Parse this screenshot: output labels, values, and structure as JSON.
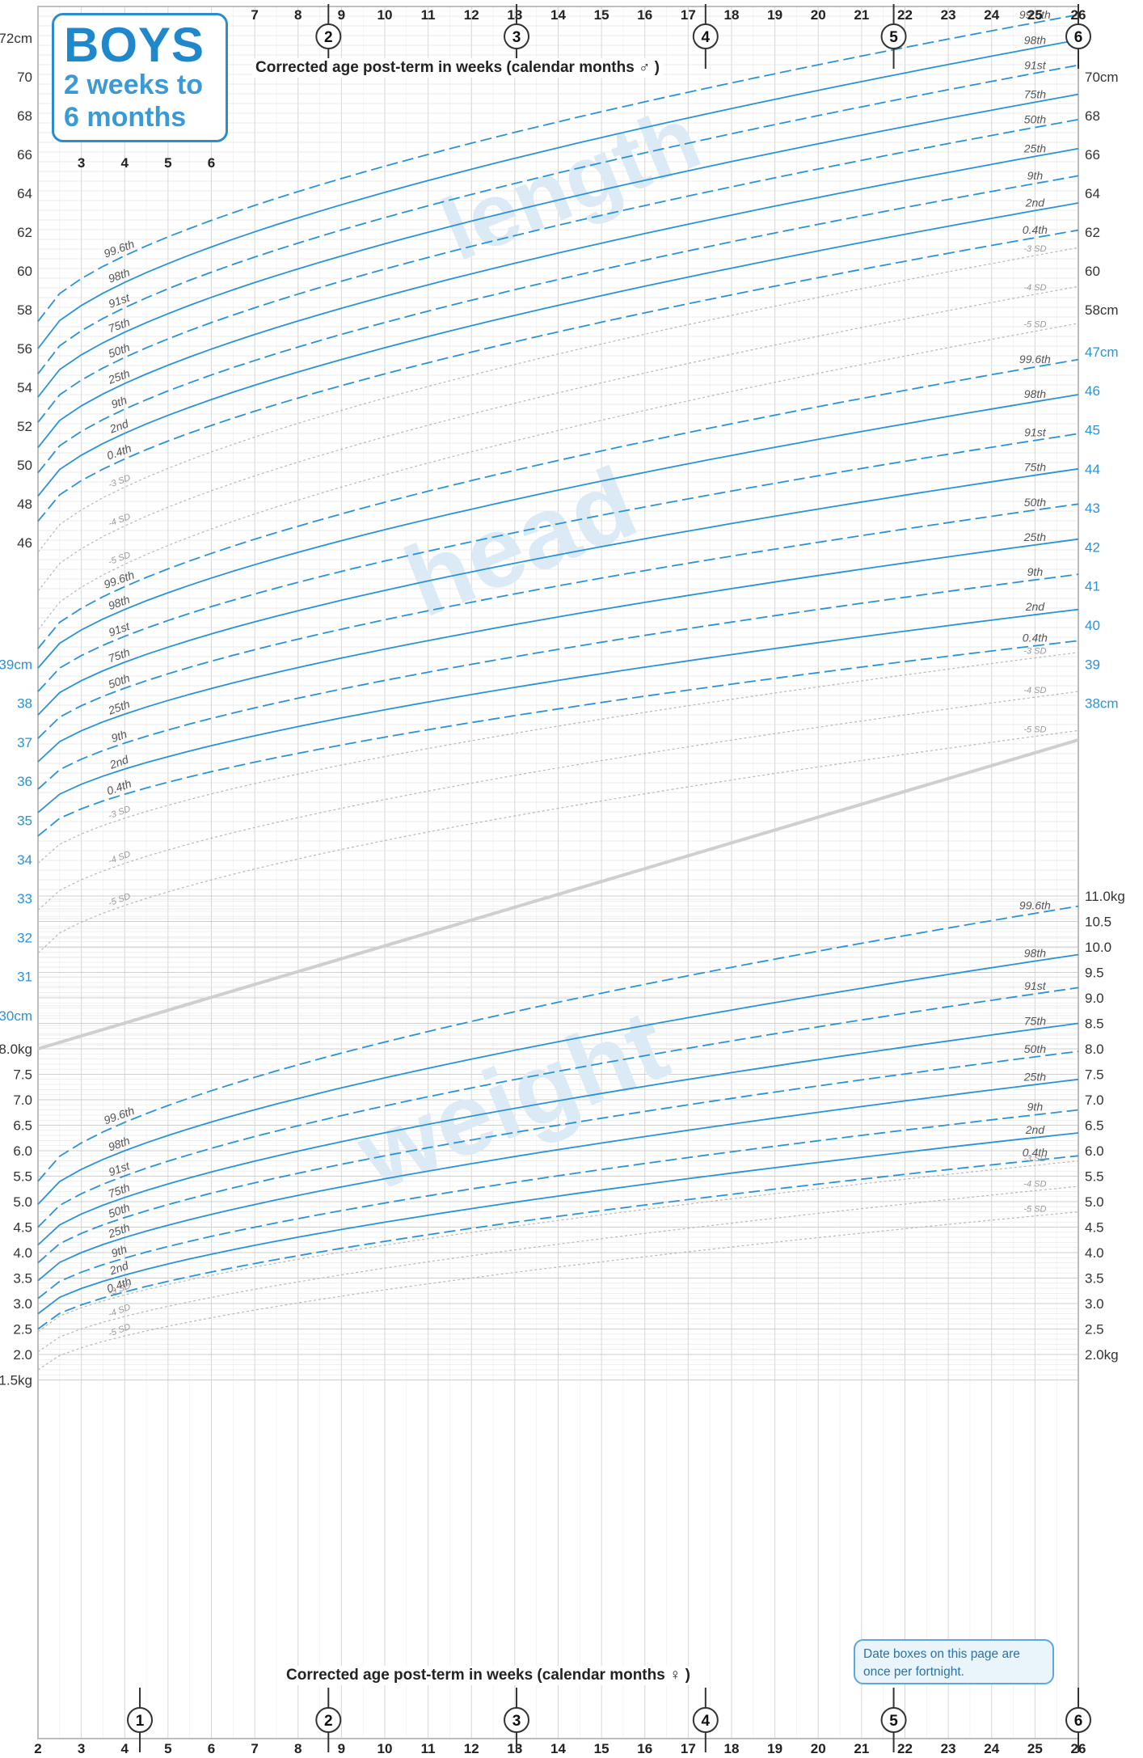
{
  "header": {
    "title": "BOYS",
    "subtitle": "2 weeks to 6 months"
  },
  "captions": {
    "top": "Corrected age post-term in weeks (calendar months ♂ )",
    "bottom": "Corrected age post-term in weeks (calendar months ♀ )"
  },
  "note": "Date boxes on this page are once per fortnight.",
  "colors": {
    "centile_line": "#2a93d5",
    "sd_line": "#b8b8b8",
    "watermark": "#dbeaf5",
    "grid": "#d6d6d6",
    "blue_label": "#2a93d5"
  },
  "chart_data": [
    {
      "type": "line",
      "title": "length",
      "xlabel": "Corrected age post-term in weeks",
      "ylabel": "",
      "unit_label": "cm",
      "x_range": [
        2,
        26
      ],
      "ylim": [
        46,
        72
      ],
      "yticks": [
        46,
        48,
        50,
        52,
        54,
        56,
        58,
        60,
        62,
        64,
        66,
        68,
        70,
        72
      ],
      "y_tick_labels_left": [
        "46",
        "48",
        "50",
        "52",
        "54",
        "56",
        "58",
        "60",
        "62",
        "64",
        "66",
        "68",
        "70",
        "72cm"
      ],
      "y_tick_labels_right": [
        "58cm",
        "60",
        "62",
        "64",
        "66",
        "68",
        "70cm"
      ],
      "month_markers": [
        "2",
        "3",
        "4",
        "5",
        "6"
      ],
      "series": [
        {
          "name": "99.6th",
          "x": [
            2,
            26
          ],
          "y": [
            57.4,
            73.2
          ],
          "dashed": true
        },
        {
          "name": "98th",
          "x": [
            2,
            26
          ],
          "y": [
            56.0,
            71.9
          ],
          "dashed": false
        },
        {
          "name": "91st",
          "x": [
            2,
            26
          ],
          "y": [
            54.7,
            70.6
          ],
          "dashed": true
        },
        {
          "name": "75th",
          "x": [
            2,
            26
          ],
          "y": [
            53.5,
            69.1
          ],
          "dashed": false
        },
        {
          "name": "50th",
          "x": [
            2,
            26
          ],
          "y": [
            52.2,
            67.8
          ],
          "dashed": true
        },
        {
          "name": "25th",
          "x": [
            2,
            26
          ],
          "y": [
            50.9,
            66.3
          ],
          "dashed": false
        },
        {
          "name": "9th",
          "x": [
            2,
            26
          ],
          "y": [
            49.6,
            64.9
          ],
          "dashed": true
        },
        {
          "name": "2nd",
          "x": [
            2,
            26
          ],
          "y": [
            48.4,
            63.5
          ],
          "dashed": false
        },
        {
          "name": "0.4th",
          "x": [
            2,
            26
          ],
          "y": [
            47.1,
            62.1
          ],
          "dashed": true
        },
        {
          "name": "-3 SD",
          "x": [
            2,
            26
          ],
          "y": [
            45.5,
            61.2
          ],
          "sd": true
        },
        {
          "name": "-4 SD",
          "x": [
            2,
            26
          ],
          "y": [
            43.5,
            59.2
          ],
          "sd": true
        },
        {
          "name": "-5 SD",
          "x": [
            2,
            26
          ],
          "y": [
            41.5,
            57.3
          ],
          "sd": true
        }
      ]
    },
    {
      "type": "line",
      "title": "head",
      "xlabel": "Corrected age post-term in weeks",
      "ylabel": "",
      "unit_label": "cm",
      "x_range": [
        2,
        26
      ],
      "ylim": [
        30,
        47
      ],
      "yticks": [
        30,
        31,
        32,
        33,
        34,
        35,
        36,
        37,
        38,
        39
      ],
      "y_tick_labels_left": [
        "30cm",
        "31",
        "32",
        "33",
        "34",
        "35",
        "36",
        "37",
        "38",
        "39cm"
      ],
      "y_tick_labels_right": [
        "38cm",
        "39",
        "40",
        "41",
        "42",
        "43",
        "44",
        "45",
        "46",
        "47cm"
      ],
      "series": [
        {
          "name": "99.6th",
          "x": [
            2,
            26
          ],
          "y": [
            39.4,
            46.8
          ],
          "dashed": true
        },
        {
          "name": "98th",
          "x": [
            2,
            26
          ],
          "y": [
            38.9,
            45.9
          ],
          "dashed": false
        },
        {
          "name": "91st",
          "x": [
            2,
            26
          ],
          "y": [
            38.3,
            44.9
          ],
          "dashed": true
        },
        {
          "name": "75th",
          "x": [
            2,
            26
          ],
          "y": [
            37.7,
            44.0
          ],
          "dashed": false
        },
        {
          "name": "50th",
          "x": [
            2,
            26
          ],
          "y": [
            37.1,
            43.1
          ],
          "dashed": true
        },
        {
          "name": "25th",
          "x": [
            2,
            26
          ],
          "y": [
            36.5,
            42.2
          ],
          "dashed": false
        },
        {
          "name": "9th",
          "x": [
            2,
            26
          ],
          "y": [
            35.8,
            41.3
          ],
          "dashed": true
        },
        {
          "name": "2nd",
          "x": [
            2,
            26
          ],
          "y": [
            35.2,
            40.4
          ],
          "dashed": false
        },
        {
          "name": "0.4th",
          "x": [
            2,
            26
          ],
          "y": [
            34.6,
            39.6
          ],
          "dashed": true
        },
        {
          "name": "-3 SD",
          "x": [
            2,
            26
          ],
          "y": [
            33.9,
            39.3
          ],
          "sd": true
        },
        {
          "name": "-4 SD",
          "x": [
            2,
            26
          ],
          "y": [
            32.7,
            38.3
          ],
          "sd": true
        },
        {
          "name": "-5 SD",
          "x": [
            2,
            26
          ],
          "y": [
            31.6,
            37.3
          ],
          "sd": true
        }
      ]
    },
    {
      "type": "line",
      "title": "weight",
      "xlabel": "Corrected age post-term in weeks",
      "ylabel": "",
      "unit_label": "kg",
      "x_range": [
        2,
        26
      ],
      "ylim": [
        1.5,
        11.0
      ],
      "yticks": [
        1.5,
        2.0,
        2.5,
        3.0,
        3.5,
        4.0,
        4.5,
        5.0,
        5.5,
        6.0,
        6.5,
        7.0,
        7.5,
        8.0,
        8.5,
        9.0,
        9.5,
        10.0,
        10.5,
        11.0
      ],
      "y_tick_labels_left": [
        "1.5kg",
        "2.0",
        "2.5",
        "3.0",
        "3.5",
        "4.0",
        "4.5",
        "5.0",
        "5.5",
        "6.0",
        "6.5",
        "7.0",
        "7.5",
        "8.0kg"
      ],
      "y_tick_labels_right": [
        "2.0kg",
        "2.5",
        "3.0",
        "3.5",
        "4.0",
        "4.5",
        "5.0",
        "5.5",
        "6.0",
        "6.5",
        "7.0",
        "7.5",
        "8.0",
        "8.5",
        "9.0",
        "9.5",
        "10.0",
        "10.5",
        "11.0kg"
      ],
      "month_markers": [
        "1",
        "2",
        "3",
        "4",
        "5",
        "6"
      ],
      "series": [
        {
          "name": "99.6th",
          "x": [
            2,
            26
          ],
          "y": [
            5.4,
            10.8
          ],
          "dashed": true
        },
        {
          "name": "98th",
          "x": [
            2,
            26
          ],
          "y": [
            4.95,
            9.85
          ],
          "dashed": false
        },
        {
          "name": "91st",
          "x": [
            2,
            26
          ],
          "y": [
            4.5,
            9.2
          ],
          "dashed": true
        },
        {
          "name": "75th",
          "x": [
            2,
            26
          ],
          "y": [
            4.15,
            8.5
          ],
          "dashed": false
        },
        {
          "name": "50th",
          "x": [
            2,
            26
          ],
          "y": [
            3.8,
            7.95
          ],
          "dashed": true
        },
        {
          "name": "25th",
          "x": [
            2,
            26
          ],
          "y": [
            3.45,
            7.4
          ],
          "dashed": false
        },
        {
          "name": "9th",
          "x": [
            2,
            26
          ],
          "y": [
            3.1,
            6.8
          ],
          "dashed": true
        },
        {
          "name": "2nd",
          "x": [
            2,
            26
          ],
          "y": [
            2.8,
            6.35
          ],
          "dashed": false
        },
        {
          "name": "0.4th",
          "x": [
            2,
            26
          ],
          "y": [
            2.5,
            5.9
          ],
          "dashed": true
        },
        {
          "name": "-3 SD",
          "x": [
            2,
            26
          ],
          "y": [
            2.45,
            5.8
          ],
          "sd": true
        },
        {
          "name": "-4 SD",
          "x": [
            2,
            26
          ],
          "y": [
            2.05,
            5.3
          ],
          "sd": true
        },
        {
          "name": "-5 SD",
          "x": [
            2,
            26
          ],
          "y": [
            1.7,
            4.8
          ],
          "sd": true
        }
      ]
    }
  ]
}
